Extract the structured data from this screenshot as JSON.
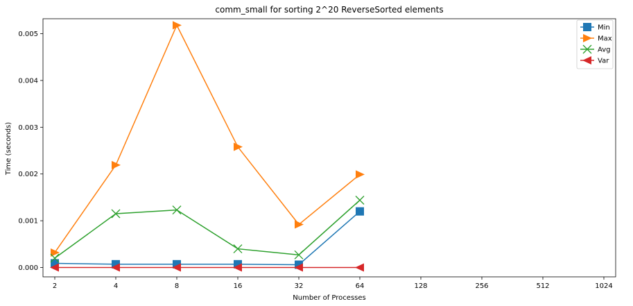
{
  "chart_data": {
    "type": "line",
    "title": "comm_small for sorting 2^20 ReverseSorted elements",
    "xlabel": "Number of Processes",
    "ylabel": "Time (seconds)",
    "x": [
      2,
      4,
      8,
      16,
      32,
      64,
      128,
      256,
      512,
      1024
    ],
    "x_tick_labels": [
      "2",
      "4",
      "8",
      "16",
      "32",
      "64",
      "128",
      "256",
      "512",
      "1024"
    ],
    "y_ticks": [
      0.0,
      0.001,
      0.002,
      0.003,
      0.004,
      0.005
    ],
    "y_tick_labels": [
      "0.000",
      "0.001",
      "0.002",
      "0.003",
      "0.004",
      "0.005"
    ],
    "ylim": [
      -0.0002,
      0.00532
    ],
    "x_scale": "log2",
    "grid": false,
    "legend_position": "top-right",
    "series": [
      {
        "name": "Min",
        "color": "#1f77b4",
        "marker": "square",
        "values": [
          9e-05,
          7e-05,
          7e-05,
          7e-05,
          6e-05,
          0.0012,
          null,
          null,
          null,
          null
        ]
      },
      {
        "name": "Max",
        "color": "#ff7f0e",
        "marker": "triangle-right",
        "values": [
          0.00032,
          0.00219,
          0.00518,
          0.00258,
          0.00092,
          0.00199,
          null,
          null,
          null,
          null
        ]
      },
      {
        "name": "Avg",
        "color": "#2ca02c",
        "marker": "x",
        "values": [
          0.0002,
          0.00115,
          0.00123,
          0.0004,
          0.00027,
          0.00144,
          null,
          null,
          null,
          null
        ]
      },
      {
        "name": "Var",
        "color": "#d62728",
        "marker": "triangle-left",
        "values": [
          0.0,
          0.0,
          0.0,
          0.0,
          0.0,
          0.0,
          null,
          null,
          null,
          null
        ]
      }
    ]
  }
}
